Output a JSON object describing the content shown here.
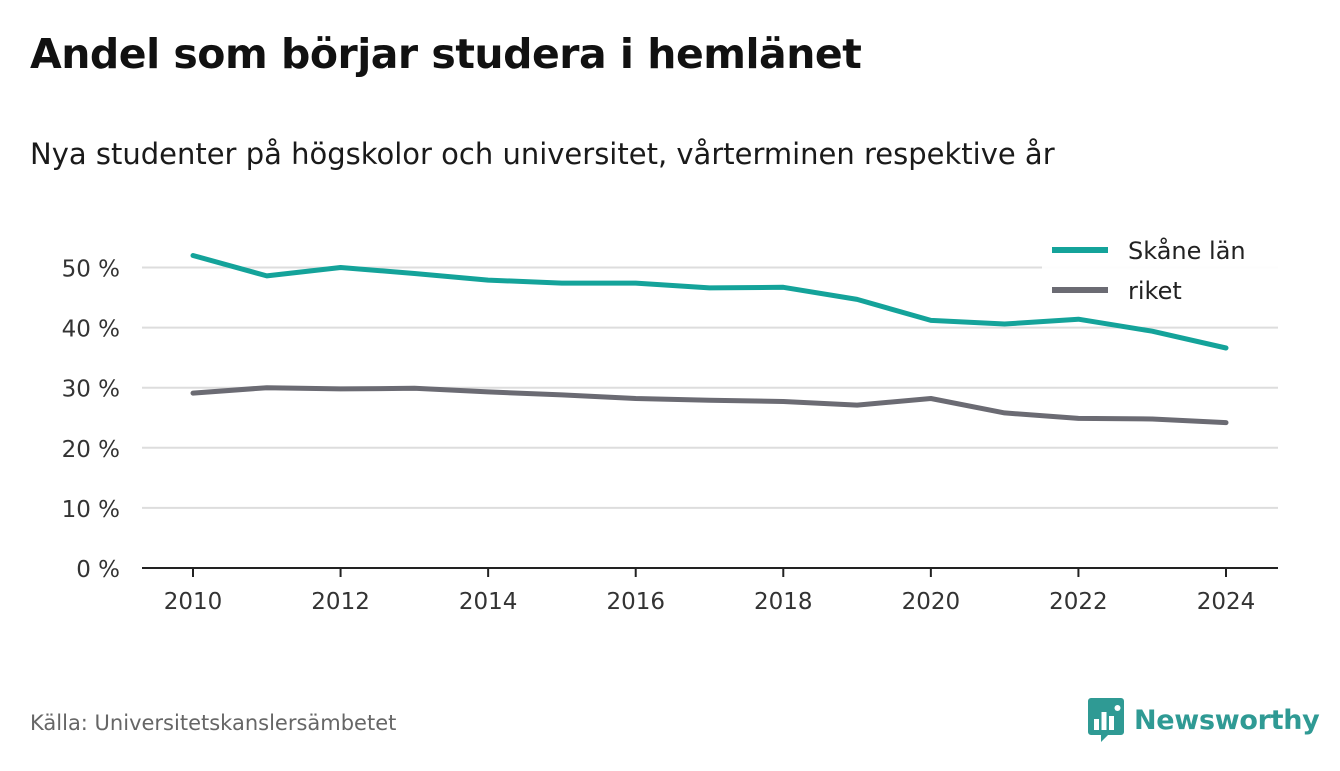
{
  "header": {
    "title": "Andel som börjar studera i hemlänet",
    "subtitle": "Nya studenter på högskolor och universitet, vårterminen respektive år"
  },
  "footer": {
    "source": "Källa: Universitetskanslersämbetet",
    "brand": "Newsworthy",
    "brand_color": "#2f9a94"
  },
  "chart_data": {
    "type": "line",
    "title": "Andel som börjar studera i hemlänet",
    "subtitle": "Nya studenter på högskolor och universitet, vårterminen respektive år",
    "x": [
      2010,
      2011,
      2012,
      2013,
      2014,
      2015,
      2016,
      2017,
      2018,
      2019,
      2020,
      2021,
      2022,
      2023,
      2024
    ],
    "series": [
      {
        "name": "Skåne län",
        "color": "#14a39a",
        "values": [
          52.0,
          48.6,
          50.0,
          49.0,
          47.9,
          47.4,
          47.4,
          46.6,
          46.7,
          44.7,
          41.2,
          40.6,
          41.4,
          39.4,
          36.6
        ]
      },
      {
        "name": "riket",
        "color": "#6b6b73",
        "values": [
          29.1,
          30.0,
          29.8,
          29.9,
          29.3,
          28.8,
          28.2,
          27.9,
          27.7,
          27.1,
          28.2,
          25.8,
          24.9,
          24.8,
          24.2
        ]
      }
    ],
    "ylim": [
      0,
      50
    ],
    "yticks": [
      0,
      10,
      20,
      30,
      40,
      50
    ],
    "ytick_labels": [
      "0 %",
      "10 %",
      "20 %",
      "30 %",
      "40 %",
      "50 %"
    ],
    "xticks": [
      2010,
      2012,
      2014,
      2016,
      2018,
      2020,
      2022,
      2024
    ],
    "xtick_labels": [
      "2010",
      "2012",
      "2014",
      "2016",
      "2018",
      "2020",
      "2022",
      "2024"
    ],
    "xlabel": "",
    "ylabel": "",
    "grid": true,
    "legend_position": "top-right"
  }
}
